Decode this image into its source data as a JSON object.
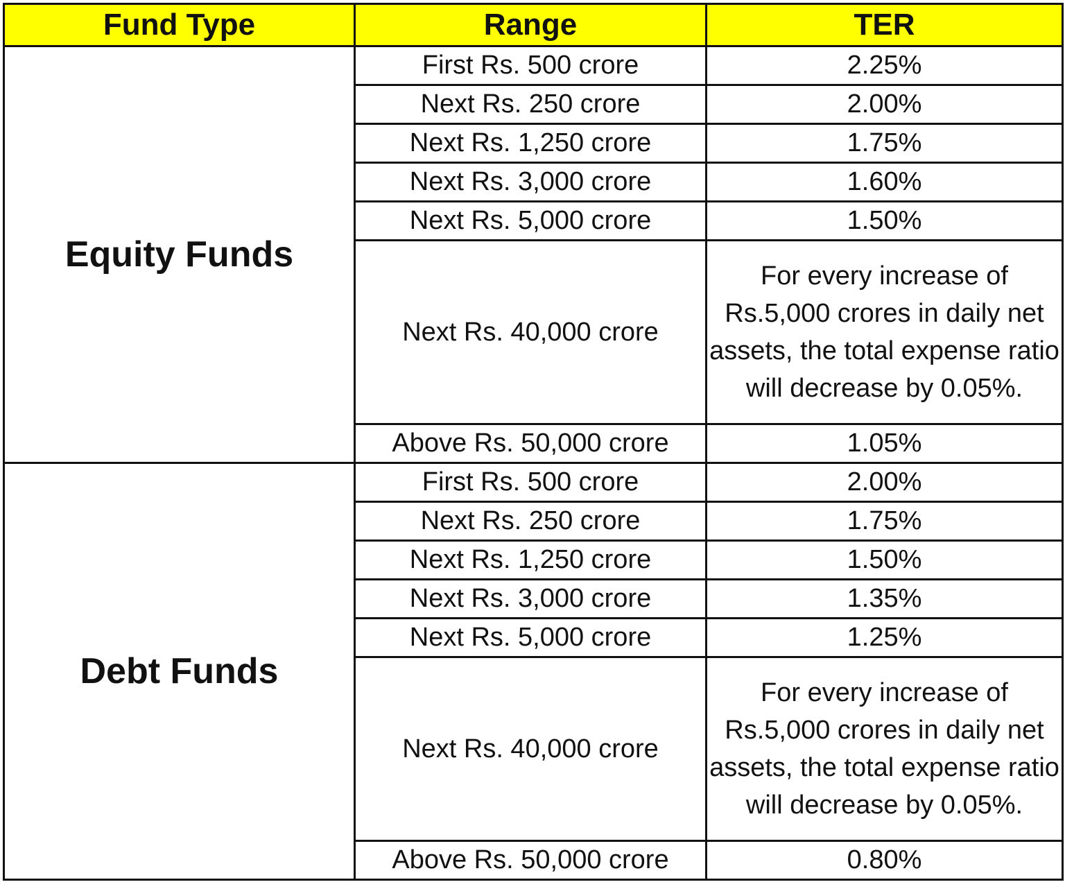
{
  "headers": [
    "Fund Type",
    "Range",
    "TER"
  ],
  "colors": {
    "header_bg": "#ffff00",
    "fund_label": "#e8161b",
    "border": "#111111"
  },
  "groups": [
    {
      "fund_type": "Equity Funds",
      "rows": [
        {
          "range": "First Rs. 500 crore",
          "ter": "2.25%"
        },
        {
          "range": "Next Rs. 250 crore",
          "ter": "2.00%"
        },
        {
          "range": "Next Rs. 1,250 crore",
          "ter": "1.75%"
        },
        {
          "range": "Next Rs. 3,000 crore",
          "ter": "1.60%"
        },
        {
          "range": "Next Rs. 5,000 crore",
          "ter": "1.50%"
        },
        {
          "range": "Next Rs. 40,000 crore",
          "ter": "For every increase of Rs.5,000 crores in daily net assets, the total expense ratio will decrease by 0.05%."
        },
        {
          "range": "Above Rs. 50,000 crore",
          "ter": "1.05%"
        }
      ]
    },
    {
      "fund_type": "Debt Funds",
      "rows": [
        {
          "range": "First Rs. 500 crore",
          "ter": "2.00%"
        },
        {
          "range": "Next Rs. 250 crore",
          "ter": "1.75%"
        },
        {
          "range": "Next Rs. 1,250 crore",
          "ter": "1.50%"
        },
        {
          "range": "Next Rs. 3,000 crore",
          "ter": "1.35%"
        },
        {
          "range": "Next Rs. 5,000 crore",
          "ter": "1.25%"
        },
        {
          "range": "Next Rs. 40,000 crore",
          "ter": "For every increase of Rs.5,000 crores in daily net assets, the total expense ratio will decrease by 0.05%."
        },
        {
          "range": "Above Rs. 50,000 crore",
          "ter": "0.80%"
        }
      ]
    }
  ]
}
